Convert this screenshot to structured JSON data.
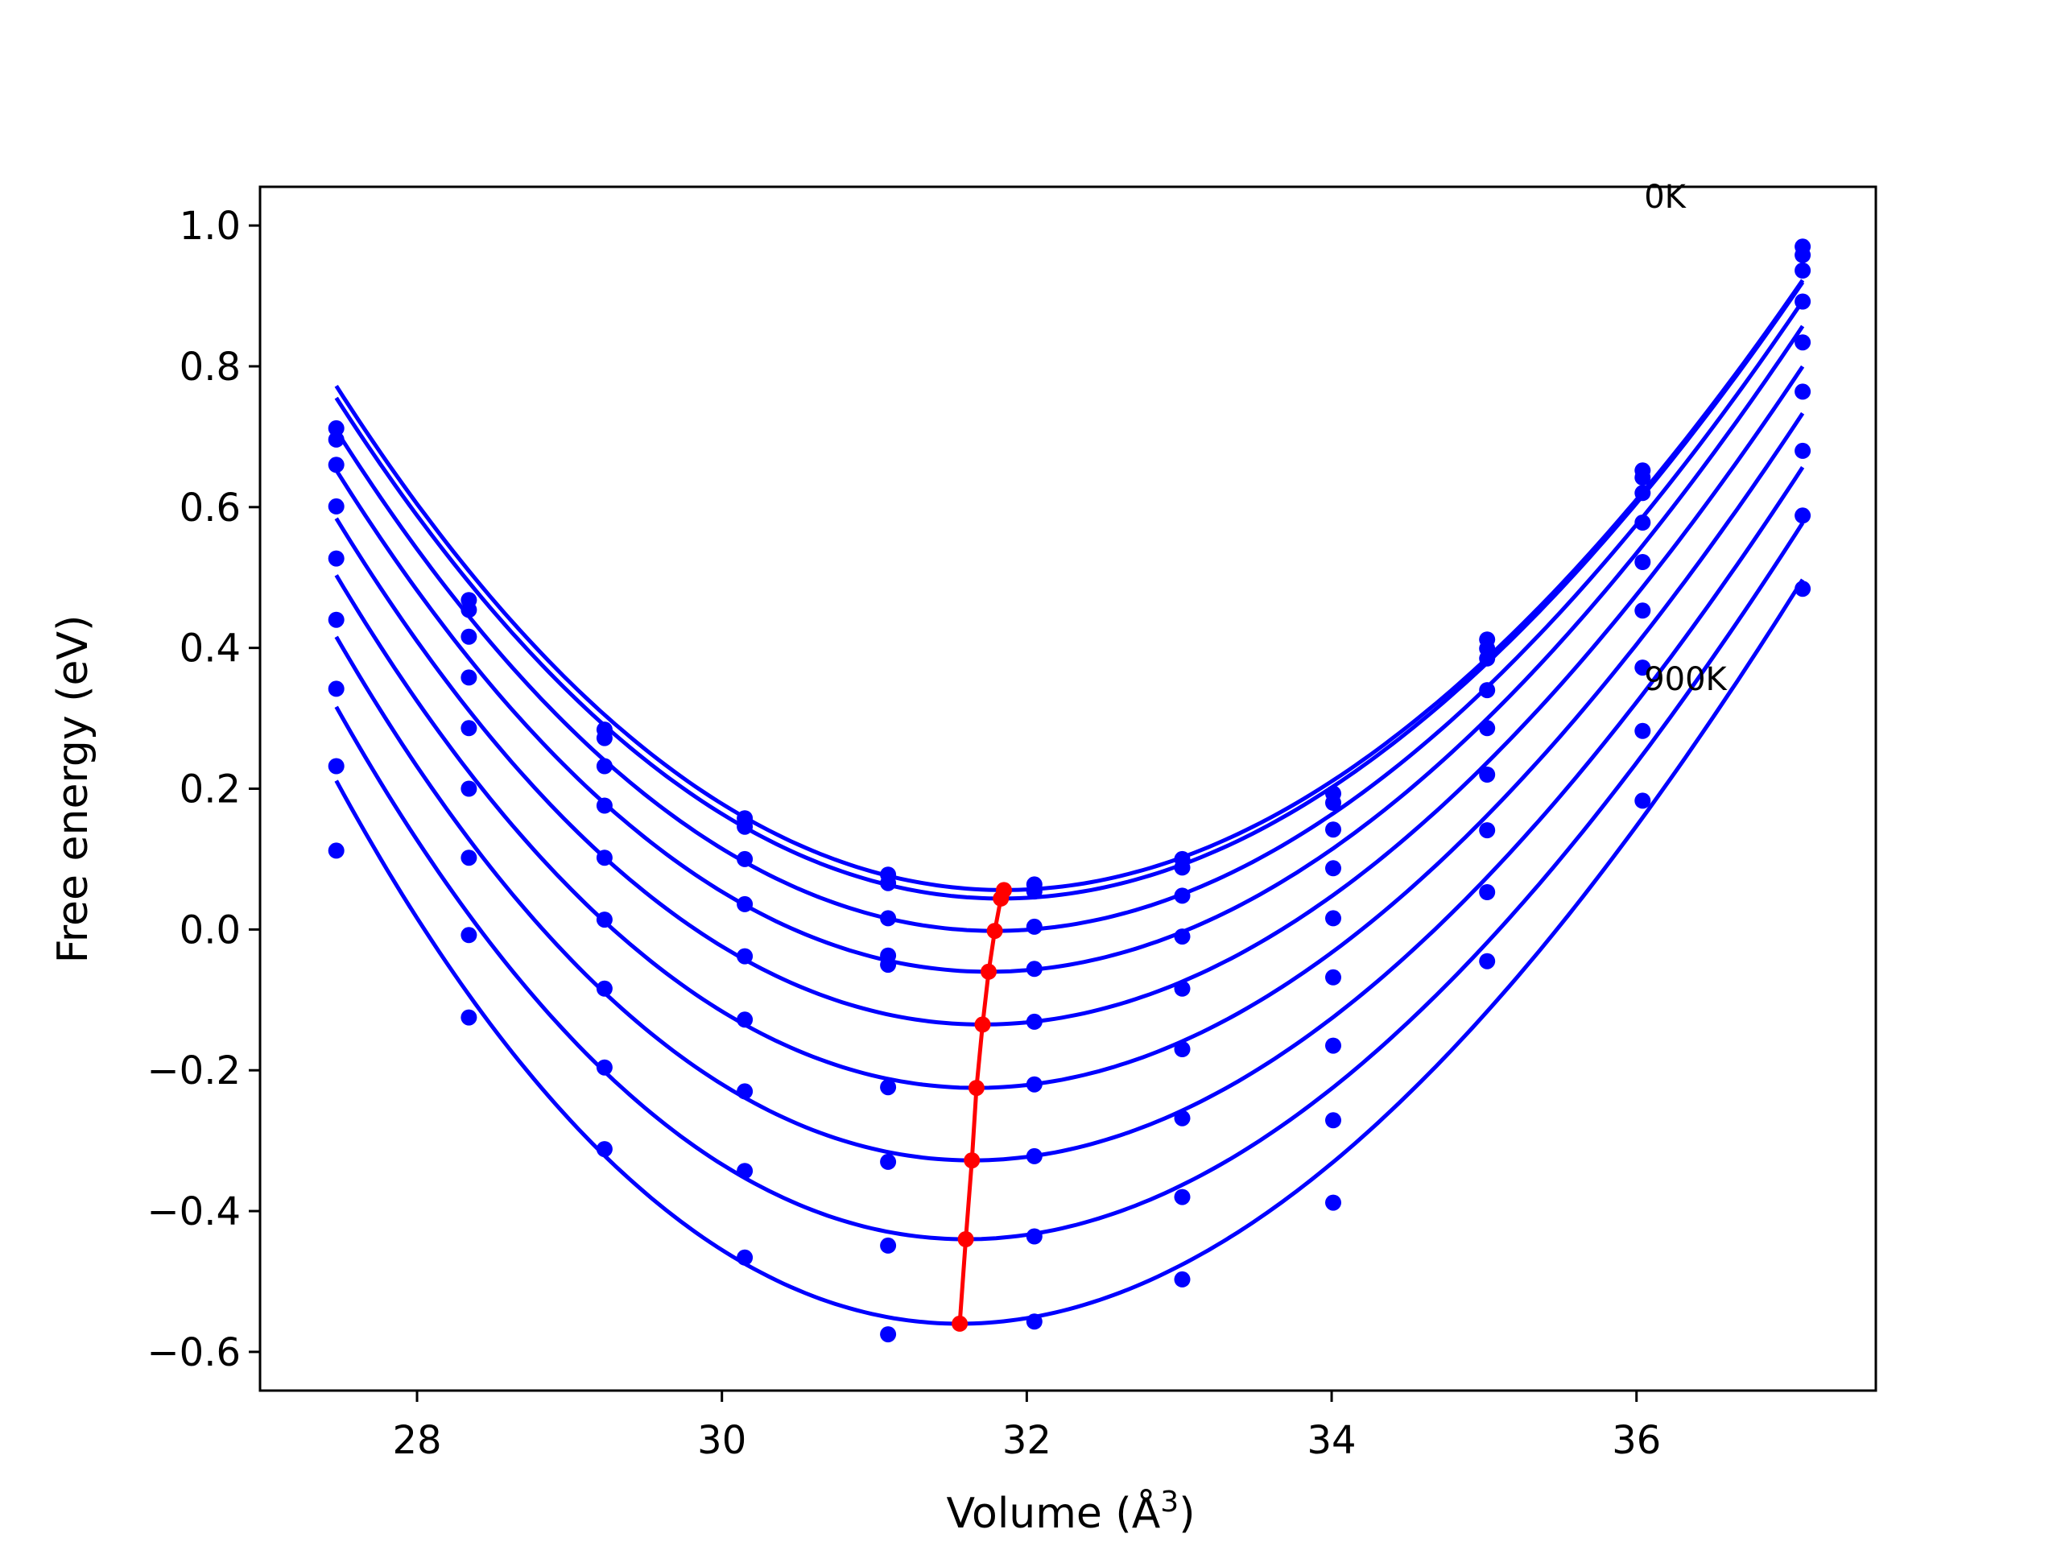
{
  "chart_data": {
    "type": "line",
    "title": "",
    "xlabel": "Volume (Å",
    "xlabel_sup": "3",
    "xlabel_close": ")",
    "ylabel": "Free energy (eV)",
    "xlim": [
      26.97,
      37.57
    ],
    "ylim": [
      -0.655,
      1.055
    ],
    "xticks": [
      28,
      30,
      32,
      34,
      36
    ],
    "xtick_labels": [
      "28",
      "30",
      "32",
      "34",
      "36"
    ],
    "yticks": [
      1.0,
      0.8,
      0.6,
      0.4,
      0.2,
      0.0,
      -0.2,
      -0.4,
      -0.6
    ],
    "ytick_labels": [
      "1.0",
      "0.8",
      "0.6",
      "0.4",
      "0.2",
      "0.0",
      "−0.2",
      "−0.4",
      "−0.6"
    ],
    "grid": false,
    "legend": "none",
    "colors": {
      "curves": "#0000ff",
      "points": "#0000ff",
      "minima": "#ff0000"
    },
    "annotations": [
      {
        "text": "0K",
        "x": 36.05,
        "y": 1.025
      },
      {
        "text": "900K",
        "x": 36.05,
        "y": 0.34
      }
    ],
    "volumes": [
      27.47,
      28.34,
      29.23,
      30.15,
      31.09,
      32.05,
      33.02,
      34.01,
      35.02,
      36.04,
      37.09
    ],
    "series": [
      {
        "values": [
          0.712,
          0.468,
          0.284,
          0.158,
          0.078,
          0.064,
          0.1,
          0.193,
          0.412,
          0.652,
          0.97
        ]
      },
      {
        "values": [
          0.696,
          0.454,
          0.272,
          0.146,
          0.066,
          0.054,
          0.088,
          0.18,
          0.399,
          0.642,
          0.958
        ]
      },
      {
        "values": [
          0.66,
          0.416,
          0.232,
          0.1,
          0.016,
          0.004,
          0.048,
          0.142,
          0.385,
          0.62,
          0.936
        ]
      },
      {
        "values": [
          0.601,
          0.358,
          0.176,
          0.036,
          -0.037,
          -0.056,
          -0.01,
          0.087,
          0.34,
          0.578,
          0.892
        ]
      },
      {
        "values": [
          0.527,
          0.286,
          0.102,
          -0.038,
          -0.05,
          -0.131,
          -0.084,
          0.016,
          0.286,
          0.522,
          0.834
        ]
      },
      {
        "values": [
          0.44,
          0.2,
          0.014,
          -0.128,
          -0.224,
          -0.22,
          -0.17,
          -0.068,
          0.22,
          0.453,
          0.764
        ]
      },
      {
        "values": [
          0.342,
          0.102,
          -0.084,
          -0.23,
          -0.33,
          -0.322,
          -0.268,
          -0.165,
          0.141,
          0.372,
          0.68
        ]
      },
      {
        "values": [
          0.232,
          -0.008,
          -0.196,
          -0.343,
          -0.449,
          -0.436,
          -0.38,
          -0.271,
          0.053,
          0.282,
          0.588
        ]
      },
      {
        "values": [
          0.112,
          -0.125,
          -0.312,
          -0.466,
          -0.575,
          -0.557,
          -0.497,
          -0.388,
          -0.045,
          0.183,
          0.484
        ]
      }
    ],
    "fits": [
      {
        "v0": 31.85,
        "e0": 0.056,
        "a": 0.0347,
        "b": -0.0006
      },
      {
        "v0": 31.83,
        "e0": 0.044,
        "a": 0.0348,
        "b": -0.0006
      },
      {
        "v0": 31.79,
        "e0": -0.002,
        "a": 0.0353,
        "b": -0.00065
      },
      {
        "v0": 31.75,
        "e0": -0.06,
        "a": 0.0359,
        "b": -0.0007
      },
      {
        "v0": 31.71,
        "e0": -0.135,
        "a": 0.0366,
        "b": -0.0008
      },
      {
        "v0": 31.67,
        "e0": -0.225,
        "a": 0.0375,
        "b": -0.0009
      },
      {
        "v0": 31.64,
        "e0": -0.328,
        "a": 0.0386,
        "b": -0.001
      },
      {
        "v0": 31.6,
        "e0": -0.44,
        "a": 0.0398,
        "b": -0.0011
      },
      {
        "v0": 31.56,
        "e0": -0.56,
        "a": 0.0412,
        "b": -0.0012
      }
    ],
    "minima": {
      "x": [
        31.85,
        31.83,
        31.79,
        31.75,
        31.71,
        31.67,
        31.64,
        31.6,
        31.56
      ],
      "y": [
        0.056,
        0.044,
        -0.002,
        -0.06,
        -0.135,
        -0.225,
        -0.328,
        -0.44,
        -0.56
      ]
    }
  }
}
